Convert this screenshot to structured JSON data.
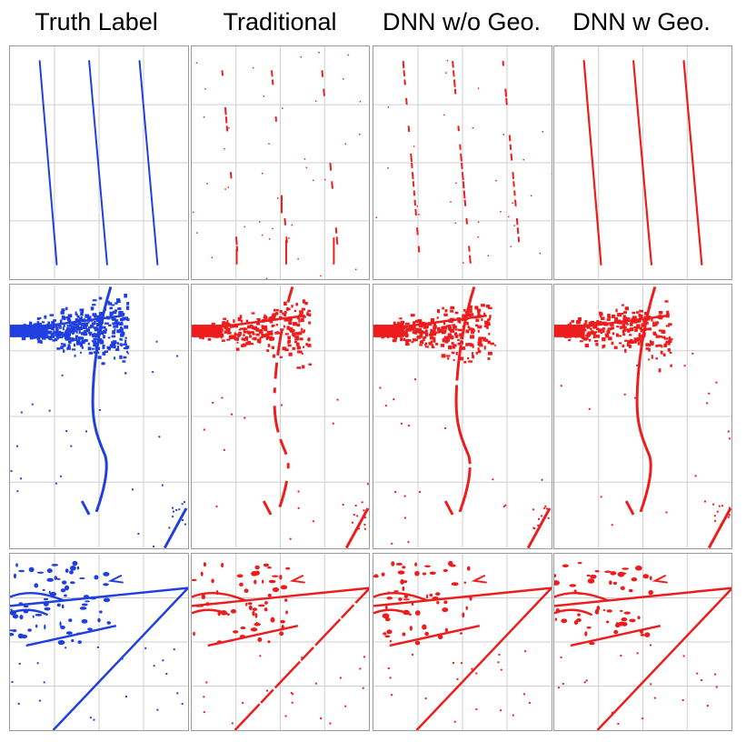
{
  "columns": [
    {
      "title": "Truth Label",
      "color": "#1f3fe0"
    },
    {
      "title": "Traditional",
      "color": "#ee1c1c"
    },
    {
      "title": "DNN w/o Geo.",
      "color": "#ee1c1c"
    },
    {
      "title": "DNN w Geo.",
      "color": "#ee1c1c"
    }
  ],
  "rows": [
    {
      "event": "three-parallel-tracks"
    },
    {
      "event": "shower-with-curved-track"
    },
    {
      "event": "shower-with-diagonal-tracks"
    }
  ],
  "grid_color": "#cfcfcf"
}
